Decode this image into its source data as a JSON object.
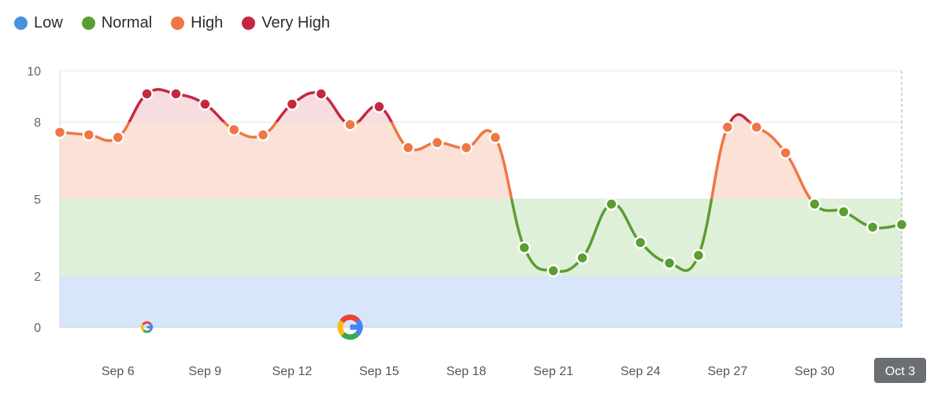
{
  "legend": {
    "items": [
      {
        "label": "Low",
        "color": "#4a90e2"
      },
      {
        "label": "Normal",
        "color": "#5a9e32"
      },
      {
        "label": "High",
        "color": "#ee7744"
      },
      {
        "label": "Very High",
        "color": "#c4283f"
      }
    ]
  },
  "chart_data": {
    "type": "line",
    "ylim": [
      0,
      10
    ],
    "y_ticks": [
      0,
      2,
      5,
      8,
      10
    ],
    "x_ticks": [
      {
        "label": "Sep 6",
        "x": 6
      },
      {
        "label": "Sep 9",
        "x": 9
      },
      {
        "label": "Sep 12",
        "x": 12
      },
      {
        "label": "Sep 15",
        "x": 15
      },
      {
        "label": "Sep 18",
        "x": 18
      },
      {
        "label": "Sep 21",
        "x": 21
      },
      {
        "label": "Sep 24",
        "x": 24
      },
      {
        "label": "Sep 27",
        "x": 27
      },
      {
        "label": "Sep 30",
        "x": 30
      },
      {
        "label": "Oct 3",
        "x": 33,
        "highlighted": true
      }
    ],
    "bands": [
      {
        "name": "Low",
        "from": 0,
        "to": 2,
        "color": "#d7e6fb"
      },
      {
        "name": "Normal",
        "from": 2,
        "to": 5,
        "color": "#dff0d8"
      },
      {
        "name": "High",
        "from": 5,
        "to": 8,
        "color": "#fbe1d6"
      },
      {
        "name": "Very High",
        "from": 8,
        "to": 10,
        "color": "#f7dde0"
      }
    ],
    "series": [
      {
        "x": [
          4,
          5,
          6,
          7,
          8,
          9,
          10,
          11,
          12,
          13,
          14,
          15,
          16,
          17,
          18,
          19,
          20,
          21,
          22,
          23,
          24,
          25,
          26,
          27,
          28,
          29,
          30,
          31,
          32,
          33
        ],
        "y": [
          7.6,
          7.5,
          7.4,
          9.1,
          9.1,
          8.7,
          7.7,
          7.5,
          8.7,
          9.1,
          7.9,
          8.6,
          7.0,
          7.2,
          7.0,
          7.4,
          3.1,
          2.2,
          2.7,
          4.8,
          3.3,
          2.5,
          2.8,
          7.8,
          7.8,
          6.8,
          4.8,
          4.5,
          3.9,
          4.0
        ]
      }
    ],
    "markers": [
      {
        "name": "google-update",
        "x": 7,
        "y": 0,
        "size": "small"
      },
      {
        "name": "google-update",
        "x": 14,
        "y": 0,
        "size": "large"
      }
    ]
  }
}
